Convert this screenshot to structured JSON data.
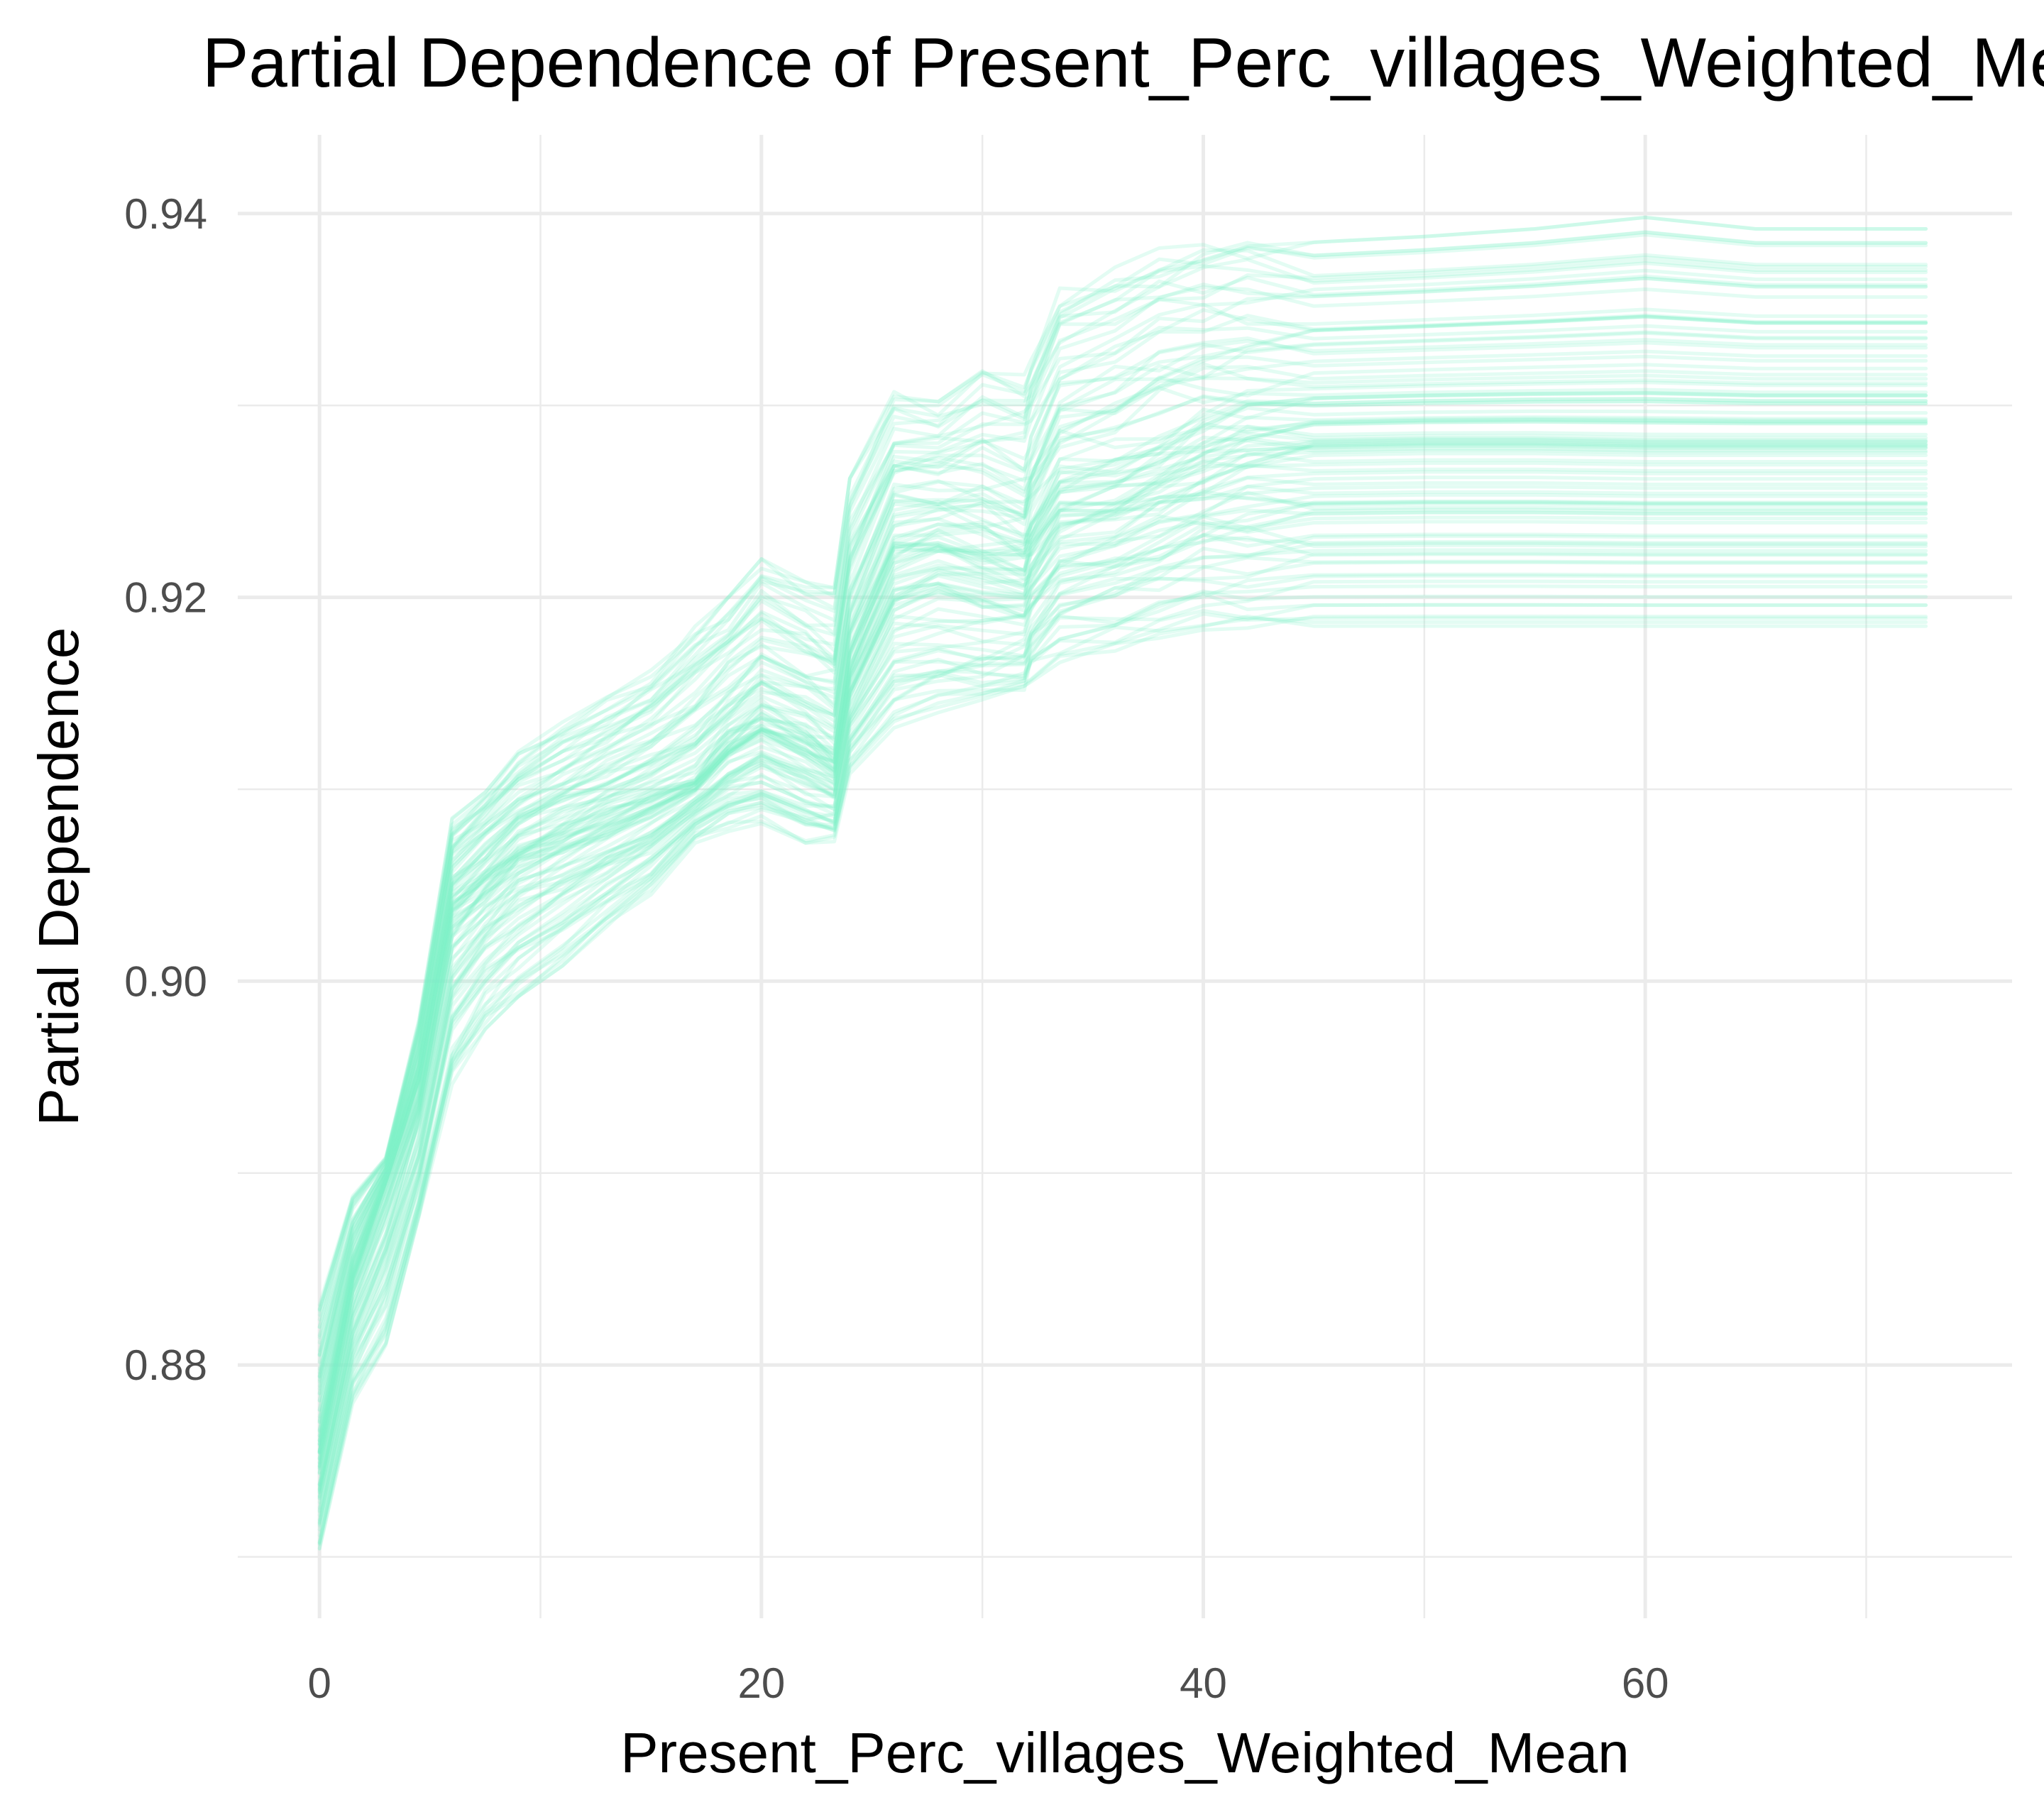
{
  "chart_data": {
    "type": "line",
    "title": "Partial Dependence of Present_Perc_villages_Weighted_Mean",
    "xlabel": "Present_Perc_villages_Weighted_Mean",
    "ylabel": "Partial Dependence",
    "xlim": [
      -3.7,
      76.6
    ],
    "ylim": [
      0.8668,
      0.9441
    ],
    "x_ticks": [
      0,
      20,
      40,
      60
    ],
    "x_tick_labels": [
      "0",
      "20",
      "40",
      "60"
    ],
    "y_ticks": [
      0.88,
      0.9,
      0.92,
      0.94
    ],
    "y_tick_labels": [
      "0.88",
      "0.90",
      "0.92",
      "0.94"
    ],
    "grid": true,
    "legend": "none",
    "line_color": "#7ff2c9",
    "line_opacity": 0.22,
    "n_lines": 100,
    "x": [
      0,
      1.5,
      3,
      4.5,
      6,
      7.5,
      9,
      11,
      13,
      15,
      17,
      18.5,
      20,
      22,
      23.3,
      24,
      26,
      28,
      30,
      31.9,
      32.2,
      33.5,
      36,
      38,
      40,
      42,
      45,
      50,
      55,
      60,
      65,
      72.7
    ],
    "mean_curve": [
      0.8755,
      0.8845,
      0.8895,
      0.8945,
      0.9035,
      0.905,
      0.9065,
      0.9075,
      0.9085,
      0.9095,
      0.9105,
      0.9125,
      0.9135,
      0.9125,
      0.9115,
      0.9165,
      0.922,
      0.9225,
      0.922,
      0.9215,
      0.9225,
      0.925,
      0.9255,
      0.9265,
      0.9275,
      0.928,
      0.9282,
      0.9283,
      0.9283,
      0.9282,
      0.9282,
      0.9282
    ],
    "series_min": [
      0.8702,
      0.878,
      0.8808,
      0.887,
      0.8945,
      0.8975,
      0.8992,
      0.9008,
      0.9028,
      0.9045,
      0.9072,
      0.9078,
      0.9082,
      0.9072,
      0.9072,
      0.9108,
      0.9132,
      0.9138,
      0.914,
      0.9146,
      0.9156,
      0.9166,
      0.9172,
      0.9178,
      0.9183,
      0.9184,
      0.9184,
      0.9184,
      0.9184,
      0.9184,
      0.9184,
      0.9184
    ],
    "series_max": [
      0.8832,
      0.8888,
      0.8908,
      0.898,
      0.9085,
      0.9102,
      0.912,
      0.9135,
      0.9148,
      0.9162,
      0.9185,
      0.92,
      0.922,
      0.9208,
      0.9205,
      0.9262,
      0.9308,
      0.9302,
      0.9318,
      0.9316,
      0.9328,
      0.9362,
      0.9372,
      0.9382,
      0.9385,
      0.9385,
      0.9385,
      0.9388,
      0.9392,
      0.9398,
      0.9392,
      0.9392
    ]
  }
}
